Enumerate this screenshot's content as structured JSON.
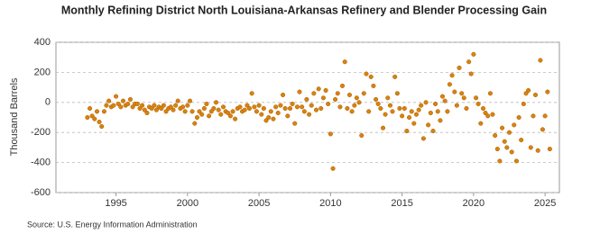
{
  "chart_data": {
    "type": "scatter",
    "title": "Monthly Refining District North Louisiana-Arkansas Refinery and Blender Processing Gain",
    "y_label": "Thousand Barrels",
    "source": "Source: U.S. Energy Information Administration",
    "xlim": [
      1990.8,
      2026.0
    ],
    "xticks": [
      1995,
      2000,
      2005,
      2010,
      2015,
      2020,
      2025
    ],
    "ylim": [
      -600,
      400
    ],
    "yticks": [
      -600,
      -400,
      -200,
      0,
      200,
      400
    ],
    "grid": true,
    "series": [
      {
        "name": "Processing Gain",
        "color": "#d9820f",
        "x": [
          1993.0,
          1993.17,
          1993.33,
          1993.5,
          1993.67,
          1993.83,
          1994.0,
          1994.17,
          1994.33,
          1994.5,
          1994.67,
          1994.83,
          1995.0,
          1995.17,
          1995.33,
          1995.5,
          1995.67,
          1995.83,
          1996.0,
          1996.17,
          1996.33,
          1996.5,
          1996.67,
          1996.83,
          1997.0,
          1997.17,
          1997.33,
          1997.5,
          1997.67,
          1997.83,
          1998.0,
          1998.17,
          1998.33,
          1998.5,
          1998.67,
          1998.83,
          1999.0,
          1999.17,
          1999.33,
          1999.5,
          1999.67,
          1999.83,
          2000.0,
          2000.17,
          2000.33,
          2000.5,
          2000.67,
          2000.83,
          2001.0,
          2001.17,
          2001.33,
          2001.5,
          2001.67,
          2001.83,
          2002.0,
          2002.17,
          2002.33,
          2002.5,
          2002.67,
          2002.83,
          2003.0,
          2003.17,
          2003.33,
          2003.5,
          2003.67,
          2003.83,
          2004.0,
          2004.17,
          2004.33,
          2004.5,
          2004.67,
          2004.83,
          2005.0,
          2005.17,
          2005.33,
          2005.5,
          2005.67,
          2005.83,
          2006.0,
          2006.17,
          2006.33,
          2006.5,
          2006.67,
          2006.83,
          2007.0,
          2007.17,
          2007.33,
          2007.5,
          2007.67,
          2007.83,
          2008.0,
          2008.17,
          2008.33,
          2008.5,
          2008.67,
          2008.83,
          2009.0,
          2009.17,
          2009.33,
          2009.5,
          2009.67,
          2009.83,
          2010.0,
          2010.17,
          2010.33,
          2010.5,
          2010.67,
          2010.83,
          2011.0,
          2011.17,
          2011.33,
          2011.5,
          2011.67,
          2011.83,
          2012.0,
          2012.17,
          2012.33,
          2012.5,
          2012.67,
          2012.83,
          2013.0,
          2013.17,
          2013.33,
          2013.5,
          2013.67,
          2013.83,
          2014.0,
          2014.17,
          2014.33,
          2014.5,
          2014.67,
          2014.83,
          2015.0,
          2015.17,
          2015.33,
          2015.5,
          2015.67,
          2015.83,
          2016.0,
          2016.17,
          2016.33,
          2016.5,
          2016.67,
          2016.83,
          2017.0,
          2017.17,
          2017.33,
          2017.5,
          2017.67,
          2017.83,
          2018.0,
          2018.17,
          2018.33,
          2018.5,
          2018.67,
          2018.83,
          2019.0,
          2019.17,
          2019.33,
          2019.5,
          2019.67,
          2019.83,
          2020.0,
          2020.17,
          2020.33,
          2020.5,
          2020.67,
          2020.83,
          2021.0,
          2021.17,
          2021.33,
          2021.5,
          2021.67,
          2021.83,
          2022.0,
          2022.17,
          2022.33,
          2022.5,
          2022.67,
          2022.83,
          2023.0,
          2023.17,
          2023.33,
          2023.5,
          2023.67,
          2023.83,
          2024.0,
          2024.17,
          2024.33,
          2024.5,
          2024.67,
          2024.83,
          2025.0,
          2025.17,
          2025.33
        ],
        "values": [
          -100,
          -40,
          -90,
          -110,
          -60,
          -130,
          -160,
          -60,
          -20,
          10,
          -30,
          -20,
          40,
          -10,
          -30,
          10,
          -20,
          -10,
          20,
          -30,
          -10,
          -10,
          -40,
          -20,
          -50,
          -70,
          -30,
          -40,
          -20,
          -50,
          -30,
          -40,
          -20,
          -60,
          -40,
          -30,
          -50,
          -20,
          10,
          -40,
          -30,
          -60,
          -20,
          10,
          -60,
          -140,
          -100,
          -60,
          -80,
          -40,
          -10,
          -90,
          -60,
          -40,
          0,
          -50,
          -80,
          -30,
          -60,
          -70,
          -90,
          -60,
          -110,
          -40,
          -30,
          -60,
          -50,
          -20,
          -40,
          60,
          -30,
          -60,
          -20,
          -80,
          -40,
          -120,
          -100,
          -60,
          -110,
          -30,
          -70,
          -20,
          50,
          -40,
          -90,
          -40,
          -10,
          -140,
          -30,
          70,
          -30,
          -60,
          20,
          -80,
          -20,
          60,
          -50,
          90,
          -40,
          30,
          80,
          -10,
          -210,
          -440,
          20,
          60,
          -30,
          110,
          270,
          -40,
          50,
          -60,
          -20,
          30,
          0,
          -220,
          60,
          190,
          -60,
          170,
          110,
          20,
          -10,
          -40,
          -170,
          -80,
          30,
          -20,
          -60,
          170,
          60,
          -40,
          -90,
          -40,
          -190,
          -100,
          -60,
          -140,
          -80,
          -50,
          -20,
          -240,
          0,
          -150,
          -70,
          -190,
          -10,
          -60,
          -120,
          40,
          10,
          -60,
          120,
          180,
          70,
          -20,
          230,
          60,
          30,
          -40,
          270,
          190,
          320,
          30,
          -10,
          -140,
          -40,
          -70,
          -90,
          60,
          -80,
          -220,
          -310,
          -390,
          -170,
          -260,
          -300,
          -200,
          -330,
          -150,
          -390,
          -100,
          -250,
          -10,
          60,
          80,
          -300,
          -90,
          50,
          -320,
          280,
          -180,
          -90,
          70,
          -310
        ]
      }
    ]
  }
}
